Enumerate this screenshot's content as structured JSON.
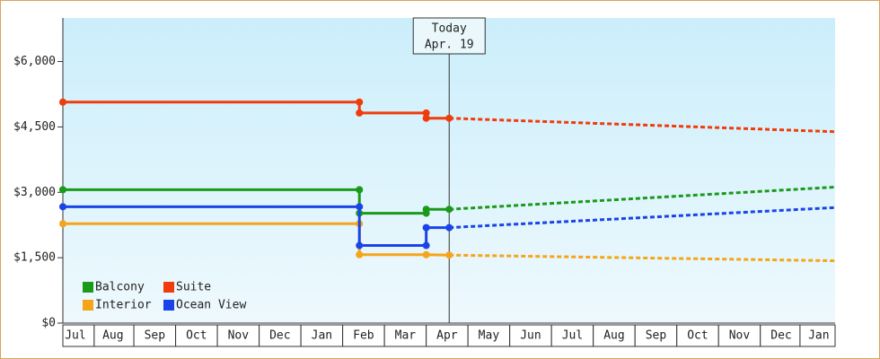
{
  "chart_data": {
    "type": "line",
    "annotation": {
      "x": 9.25,
      "lines": [
        "Today",
        "Apr. 19"
      ]
    },
    "xlim": [
      0,
      18.49
    ],
    "xticks": [
      {
        "value": 0.3,
        "label": "Jul"
      },
      {
        "value": 1.2,
        "label": "Aug"
      },
      {
        "value": 2.2,
        "label": "Sep"
      },
      {
        "value": 3.2,
        "label": "Oct"
      },
      {
        "value": 4.2,
        "label": "Nov"
      },
      {
        "value": 5.2,
        "label": "Dec"
      },
      {
        "value": 6.2,
        "label": "Jan"
      },
      {
        "value": 7.2,
        "label": "Feb"
      },
      {
        "value": 8.2,
        "label": "Mar"
      },
      {
        "value": 9.2,
        "label": "Apr"
      },
      {
        "value": 10.2,
        "label": "May"
      },
      {
        "value": 11.2,
        "label": "Jun"
      },
      {
        "value": 12.2,
        "label": "Jul"
      },
      {
        "value": 13.2,
        "label": "Aug"
      },
      {
        "value": 14.2,
        "label": "Sep"
      },
      {
        "value": 15.2,
        "label": "Oct"
      },
      {
        "value": 16.2,
        "label": "Nov"
      },
      {
        "value": 17.2,
        "label": "Dec"
      },
      {
        "value": 18.1,
        "label": "Jan"
      }
    ],
    "ylim": [
      0,
      7000
    ],
    "yticks": [
      {
        "value": 0,
        "label": "$0"
      },
      {
        "value": 1500,
        "label": "$1,500"
      },
      {
        "value": 3000,
        "label": "$3,000"
      },
      {
        "value": 4500,
        "label": "$4,500"
      },
      {
        "value": 6000,
        "label": "$6,000"
      }
    ],
    "grid": false,
    "legend": "bottom-left",
    "series": [
      {
        "name": "Balcony",
        "color": "#1a9a1a",
        "x": [
          0,
          7.1,
          7.1,
          8.7,
          8.7,
          9.25
        ],
        "values": [
          3060,
          3060,
          2520,
          2520,
          2610,
          2610
        ],
        "forecast_x": [
          9.25,
          18.49
        ],
        "forecast_values": [
          2610,
          3120
        ]
      },
      {
        "name": "Suite",
        "color": "#f03c0c",
        "x": [
          0,
          7.1,
          7.1,
          8.7,
          8.7,
          9.25
        ],
        "values": [
          5070,
          5070,
          4820,
          4820,
          4700,
          4700
        ],
        "forecast_x": [
          9.25,
          18.49
        ],
        "forecast_values": [
          4700,
          4390
        ]
      },
      {
        "name": "Interior",
        "color": "#f5a519",
        "x": [
          0,
          7.1,
          7.1,
          8.7,
          9.25
        ],
        "values": [
          2280,
          2280,
          1570,
          1570,
          1560
        ],
        "forecast_x": [
          9.25,
          18.49
        ],
        "forecast_values": [
          1560,
          1430
        ]
      },
      {
        "name": "Ocean View",
        "color": "#1a44e8",
        "x": [
          0,
          7.1,
          7.1,
          8.7,
          8.7,
          9.25
        ],
        "values": [
          2670,
          2670,
          1780,
          1780,
          2190,
          2190
        ],
        "forecast_x": [
          9.25,
          18.49
        ],
        "forecast_values": [
          2190,
          2650
        ]
      }
    ]
  }
}
